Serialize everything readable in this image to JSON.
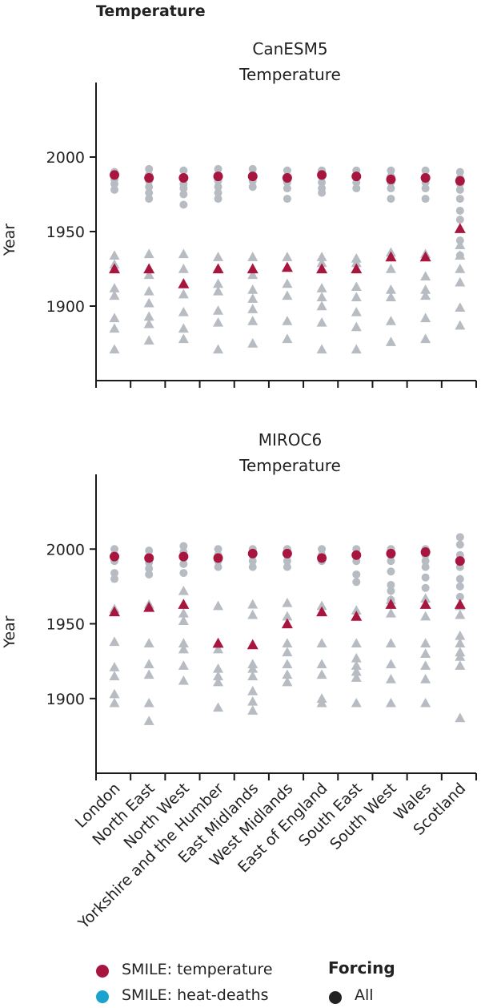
{
  "figure": {
    "title": "Temperature"
  },
  "colors": {
    "highlight": "#a8163f",
    "grey": "#b7bcc3",
    "heat": "#1aa3cc",
    "axis": "#1a1a1a",
    "forcing": "#222222"
  },
  "chart_data": [
    {
      "type": "scatter",
      "model": "CanESM5",
      "title": "Temperature",
      "ylabel": "Year",
      "ylim": [
        1850,
        2050
      ],
      "yticks": [
        1900,
        1950,
        2000
      ],
      "categories": [
        "London",
        "North East",
        "North West",
        "Yorkshire and the Humber",
        "East Midlands",
        "West Midlands",
        "East of England",
        "South East",
        "South West",
        "Wales",
        "Scotland"
      ],
      "grey_circles": [
        [
          1990,
          1985,
          1982,
          1978
        ],
        [
          1992,
          1988,
          1984,
          1980,
          1976,
          1972
        ],
        [
          1991,
          1986,
          1982,
          1979,
          1975,
          1968
        ],
        [
          1992,
          1988,
          1984,
          1980,
          1976,
          1972
        ],
        [
          1992,
          1988,
          1984,
          1980
        ],
        [
          1991,
          1987,
          1983,
          1979,
          1972
        ],
        [
          1991,
          1987,
          1983,
          1979,
          1976
        ],
        [
          1991,
          1987,
          1983,
          1979
        ],
        [
          1991,
          1987,
          1983,
          1979,
          1972
        ],
        [
          1991,
          1987,
          1983,
          1979,
          1972
        ],
        [
          1990,
          1986,
          1982,
          1978,
          1972,
          1964,
          1958,
          1944,
          1934
        ]
      ],
      "grey_triangles": [
        [
          1934,
          1928,
          1912,
          1907,
          1892,
          1885,
          1871
        ],
        [
          1935,
          1921,
          1910,
          1902,
          1893,
          1888,
          1877
        ],
        [
          1935,
          1925,
          1908,
          1896,
          1885,
          1878
        ],
        [
          1933,
          1915,
          1910,
          1897,
          1889,
          1871
        ],
        [
          1933,
          1921,
          1911,
          1905,
          1898,
          1890,
          1875
        ],
        [
          1933,
          1915,
          1907,
          1890,
          1878
        ],
        [
          1933,
          1929,
          1912,
          1906,
          1900,
          1889,
          1871
        ],
        [
          1932,
          1929,
          1913,
          1906,
          1896,
          1886,
          1871
        ],
        [
          1936,
          1925,
          1911,
          1906,
          1890,
          1876
        ],
        [
          1935,
          1920,
          1911,
          1907,
          1892,
          1878
        ],
        [
          1941,
          1934,
          1925,
          1916,
          1899,
          1887
        ]
      ],
      "red_circles": [
        1988,
        1986,
        1986,
        1987,
        1987,
        1986,
        1988,
        1987,
        1985,
        1986,
        1984
      ],
      "red_triangles": [
        1925,
        1925,
        1915,
        1925,
        1925,
        1926,
        1925,
        1925,
        1933,
        1933,
        1952
      ]
    },
    {
      "type": "scatter",
      "model": "MIROC6",
      "title": "Temperature",
      "ylabel": "Year",
      "ylim": [
        1850,
        2050
      ],
      "yticks": [
        1900,
        1950,
        2000
      ],
      "categories": [
        "London",
        "North East",
        "North West",
        "Yorkshire and the Humber",
        "East Midlands",
        "West Midlands",
        "East of England",
        "South East",
        "South West",
        "Wales",
        "Scotland"
      ],
      "grey_circles": [
        [
          2000,
          1996,
          1992,
          1984,
          1980
        ],
        [
          1999,
          1995,
          1991,
          1987,
          1983
        ],
        [
          2002,
          1998,
          1994,
          1990,
          1984
        ],
        [
          2000,
          1996,
          1992,
          1988
        ],
        [
          2000,
          1996,
          1992,
          1988
        ],
        [
          2000,
          1996,
          1992,
          1988
        ],
        [
          2000,
          1996,
          1992
        ],
        [
          2000,
          1996,
          1992,
          1983,
          1978
        ],
        [
          2000,
          1996,
          1992,
          1985,
          1976,
          1972,
          1966
        ],
        [
          2000,
          1996,
          1992,
          1988,
          1981,
          1974
        ],
        [
          2008,
          2003,
          1996,
          1988,
          1980,
          1975,
          1968
        ]
      ],
      "grey_triangles": [
        [
          1960,
          1938,
          1921,
          1915,
          1903,
          1897
        ],
        [
          1963,
          1937,
          1923,
          1916,
          1897,
          1885
        ],
        [
          1972,
          1957,
          1952,
          1937,
          1933,
          1922,
          1912
        ],
        [
          1962,
          1933,
          1920,
          1915,
          1911,
          1894
        ],
        [
          1963,
          1956,
          1923,
          1920,
          1915,
          1905,
          1898,
          1892
        ],
        [
          1964,
          1955,
          1937,
          1931,
          1923,
          1916,
          1911
        ],
        [
          1962,
          1937,
          1923,
          1916,
          1900,
          1897
        ],
        [
          1959,
          1937,
          1927,
          1922,
          1918,
          1914,
          1897
        ],
        [
          1966,
          1957,
          1937,
          1923,
          1913,
          1897
        ],
        [
          1967,
          1955,
          1937,
          1930,
          1922,
          1913,
          1897
        ],
        [
          1962,
          1956,
          1942,
          1937,
          1931,
          1928,
          1922,
          1887
        ]
      ],
      "red_circles": [
        1995,
        1994,
        1995,
        1994,
        1997,
        1997,
        1994,
        1996,
        1997,
        1998,
        1992
      ],
      "red_triangles": [
        1958,
        1961,
        1963,
        1937,
        1936,
        1950,
        1958,
        1955,
        1963,
        1963,
        1963
      ]
    }
  ],
  "legend": {
    "smile_temperature": "SMILE: temperature",
    "smile_heat_deaths": "SMILE: heat-deaths",
    "forcing_title": "Forcing",
    "forcing_all": "All"
  }
}
